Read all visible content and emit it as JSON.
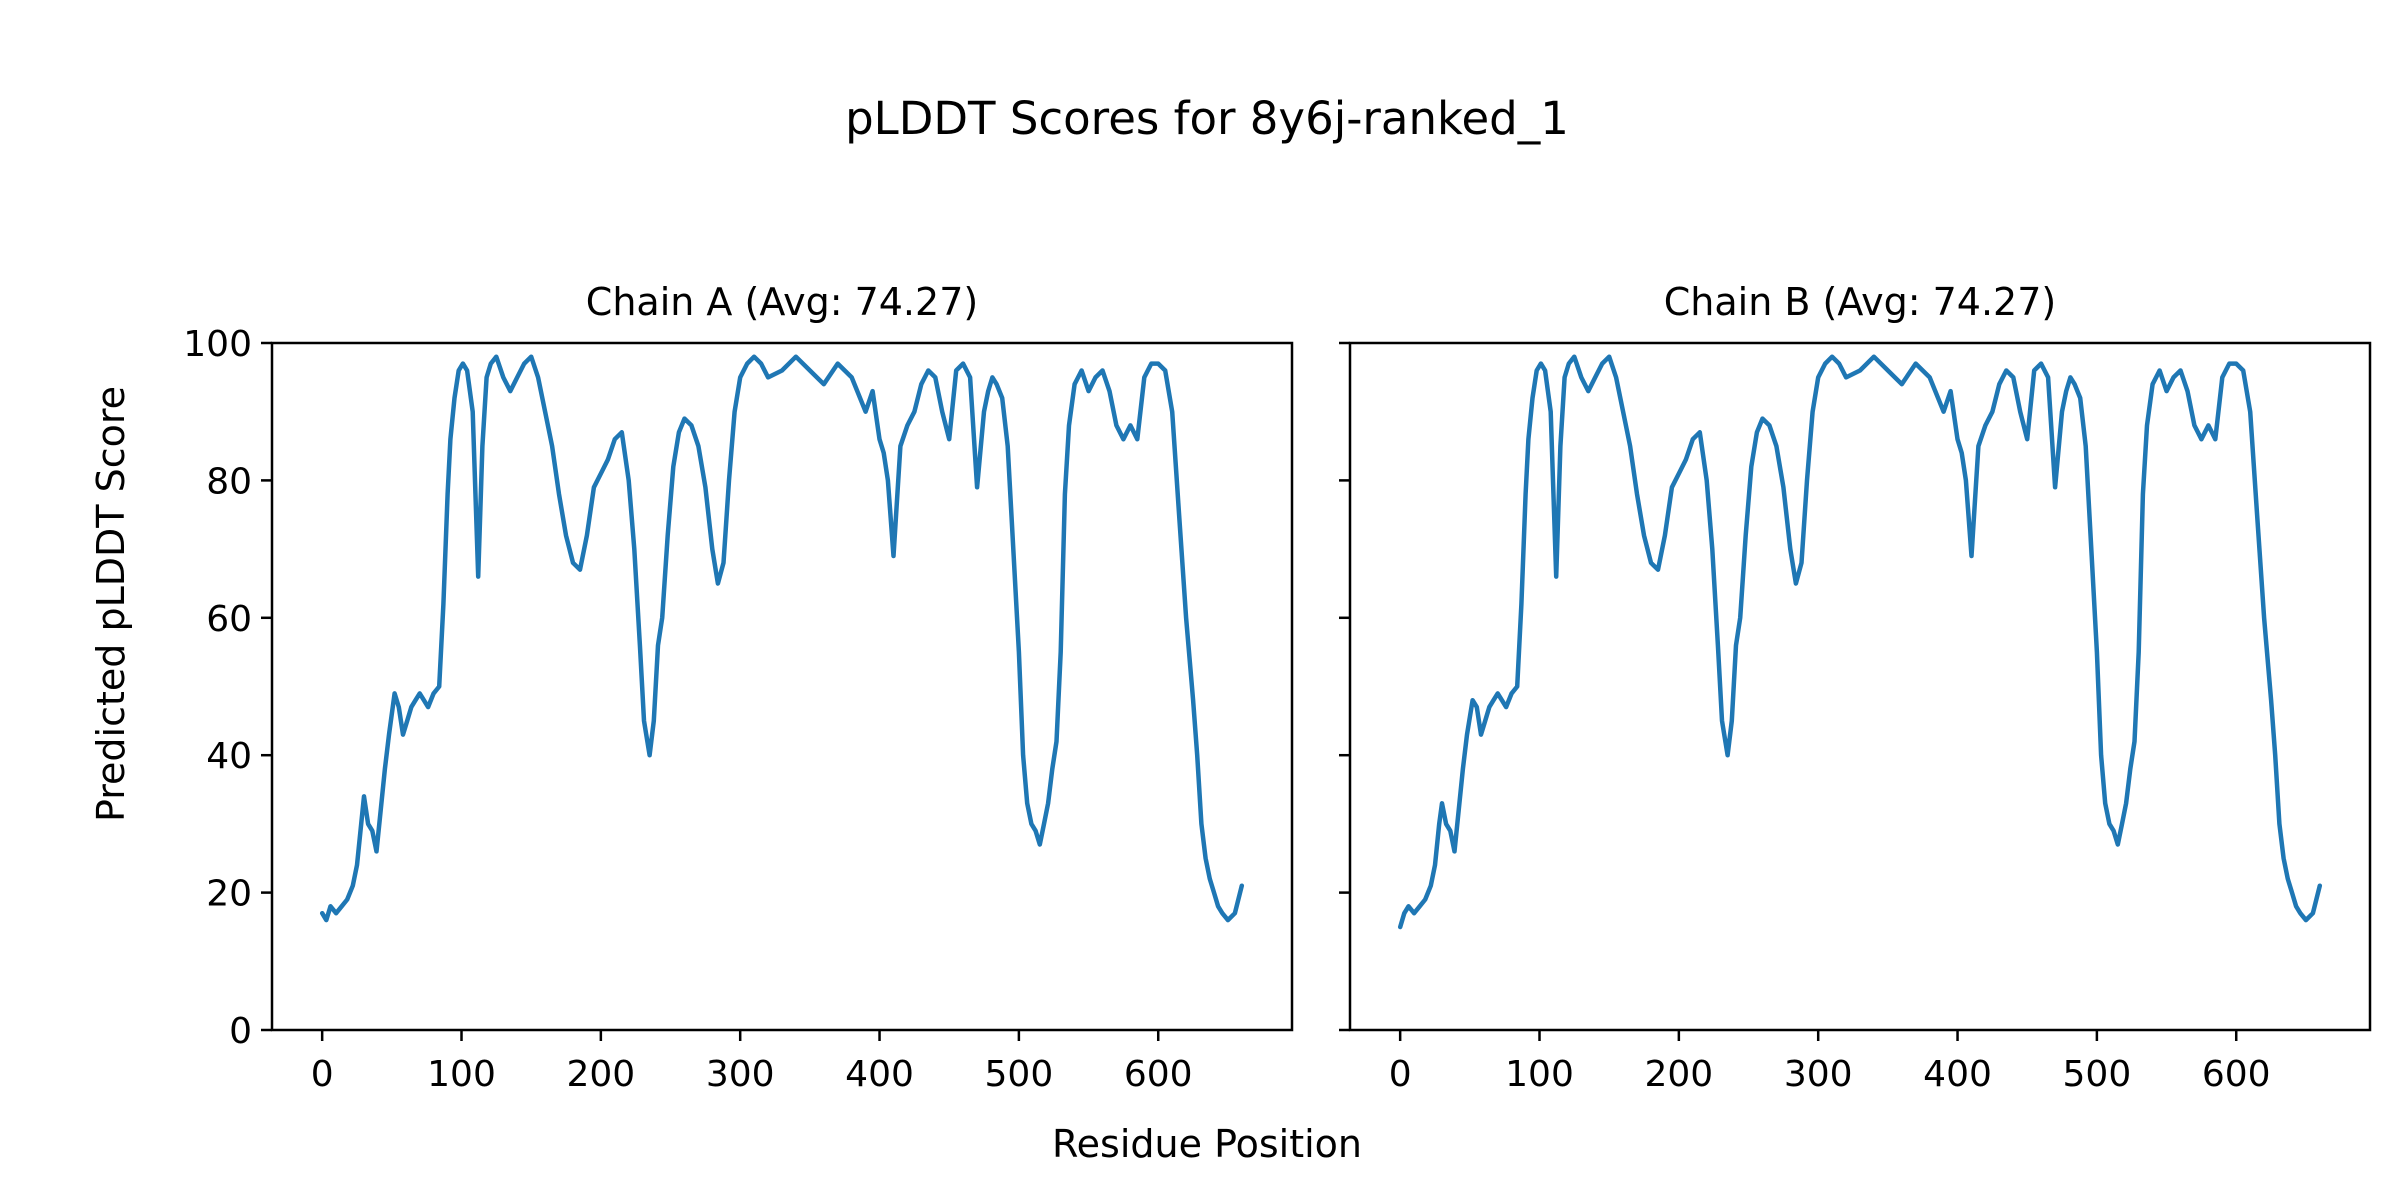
{
  "title": "pLDDT Scores for 8y6j-ranked_1",
  "xlabel": "Residue Position",
  "ylabel": "Predicted pLDDT Score",
  "line_color": "#1f77b4",
  "chart_data": [
    {
      "type": "line",
      "title": "Chain A (Avg: 74.27)",
      "xlim": [
        -36,
        696
      ],
      "ylim": [
        0,
        100
      ],
      "xticks": [
        0,
        100,
        200,
        300,
        400,
        500,
        600
      ],
      "yticks": [
        0,
        20,
        40,
        60,
        80,
        100
      ],
      "grid": false,
      "series": [
        {
          "x": [
            0,
            3,
            6,
            10,
            14,
            18,
            22,
            25,
            28,
            30,
            33,
            36,
            39,
            42,
            45,
            48,
            52,
            55,
            58,
            61,
            64,
            67,
            70,
            73,
            76,
            80,
            84,
            87,
            90,
            92,
            95,
            98,
            101,
            104,
            108,
            112,
            115,
            118,
            121,
            125,
            130,
            135,
            140,
            145,
            150,
            155,
            160,
            165,
            170,
            175,
            180,
            185,
            190,
            195,
            200,
            205,
            210,
            215,
            220,
            224,
            228,
            231,
            235,
            238,
            241,
            244,
            248,
            252,
            256,
            260,
            265,
            270,
            275,
            280,
            284,
            288,
            292,
            296,
            300,
            305,
            310,
            315,
            320,
            330,
            340,
            350,
            360,
            370,
            380,
            390,
            395,
            400,
            403,
            406,
            410,
            415,
            420,
            425,
            430,
            435,
            440,
            445,
            450,
            455,
            460,
            465,
            470,
            475,
            478,
            481,
            484,
            488,
            492,
            496,
            500,
            503,
            506,
            509,
            512,
            515,
            518,
            521,
            524,
            527,
            530,
            533,
            536,
            540,
            545,
            550,
            555,
            560,
            565,
            570,
            575,
            580,
            585,
            590,
            595,
            600,
            605,
            610,
            615,
            620,
            625,
            628,
            631,
            634,
            637,
            640,
            643,
            646,
            650,
            655,
            660
          ],
          "y": [
            17,
            16,
            18,
            17,
            18,
            19,
            21,
            24,
            30,
            34,
            30,
            29,
            26,
            32,
            38,
            43,
            49,
            47,
            43,
            45,
            47,
            48,
            49,
            48,
            47,
            49,
            50,
            62,
            78,
            86,
            92,
            96,
            97,
            96,
            90,
            66,
            85,
            95,
            97,
            98,
            95,
            93,
            95,
            97,
            98,
            95,
            90,
            85,
            78,
            72,
            68,
            67,
            72,
            79,
            81,
            83,
            86,
            87,
            80,
            70,
            56,
            45,
            40,
            45,
            56,
            60,
            72,
            82,
            87,
            89,
            88,
            85,
            79,
            70,
            65,
            68,
            80,
            90,
            95,
            97,
            98,
            97,
            95,
            96,
            98,
            96,
            94,
            97,
            95,
            90,
            93,
            86,
            84,
            80,
            69,
            85,
            88,
            90,
            94,
            96,
            95,
            90,
            86,
            96,
            97,
            95,
            79,
            90,
            93,
            95,
            94,
            92,
            85,
            70,
            55,
            40,
            33,
            30,
            29,
            27,
            30,
            33,
            38,
            42,
            55,
            78,
            88,
            94,
            96,
            93,
            95,
            96,
            93,
            88,
            86,
            88,
            86,
            95,
            97,
            97,
            96,
            90,
            75,
            60,
            48,
            40,
            30,
            25,
            22,
            20,
            18,
            17,
            16,
            17,
            21
          ]
        }
      ]
    },
    {
      "type": "line",
      "title": "Chain B (Avg: 74.27)",
      "xlim": [
        -36,
        696
      ],
      "ylim": [
        0,
        100
      ],
      "xticks": [
        0,
        100,
        200,
        300,
        400,
        500,
        600
      ],
      "yticks": [
        0,
        20,
        40,
        60,
        80,
        100
      ],
      "grid": false,
      "series": [
        {
          "x": [
            0,
            3,
            6,
            10,
            14,
            18,
            22,
            25,
            28,
            30,
            33,
            36,
            39,
            42,
            45,
            48,
            52,
            55,
            58,
            61,
            64,
            67,
            70,
            73,
            76,
            80,
            84,
            87,
            90,
            92,
            95,
            98,
            101,
            104,
            108,
            112,
            115,
            118,
            121,
            125,
            130,
            135,
            140,
            145,
            150,
            155,
            160,
            165,
            170,
            175,
            180,
            185,
            190,
            195,
            200,
            205,
            210,
            215,
            220,
            224,
            228,
            231,
            235,
            238,
            241,
            244,
            248,
            252,
            256,
            260,
            265,
            270,
            275,
            280,
            284,
            288,
            292,
            296,
            300,
            305,
            310,
            315,
            320,
            330,
            340,
            350,
            360,
            370,
            380,
            390,
            395,
            400,
            403,
            406,
            410,
            415,
            420,
            425,
            430,
            435,
            440,
            445,
            450,
            455,
            460,
            465,
            470,
            475,
            478,
            481,
            484,
            488,
            492,
            496,
            500,
            503,
            506,
            509,
            512,
            515,
            518,
            521,
            524,
            527,
            530,
            533,
            536,
            540,
            545,
            550,
            555,
            560,
            565,
            570,
            575,
            580,
            585,
            590,
            595,
            600,
            605,
            610,
            615,
            620,
            625,
            628,
            631,
            634,
            637,
            640,
            643,
            646,
            650,
            655,
            660
          ],
          "y": [
            15,
            17,
            18,
            17,
            18,
            19,
            21,
            24,
            30,
            33,
            30,
            29,
            26,
            32,
            38,
            43,
            48,
            47,
            43,
            45,
            47,
            48,
            49,
            48,
            47,
            49,
            50,
            62,
            78,
            86,
            92,
            96,
            97,
            96,
            90,
            66,
            85,
            95,
            97,
            98,
            95,
            93,
            95,
            97,
            98,
            95,
            90,
            85,
            78,
            72,
            68,
            67,
            72,
            79,
            81,
            83,
            86,
            87,
            80,
            70,
            56,
            45,
            40,
            45,
            56,
            60,
            72,
            82,
            87,
            89,
            88,
            85,
            79,
            70,
            65,
            68,
            80,
            90,
            95,
            97,
            98,
            97,
            95,
            96,
            98,
            96,
            94,
            97,
            95,
            90,
            93,
            86,
            84,
            80,
            69,
            85,
            88,
            90,
            94,
            96,
            95,
            90,
            86,
            96,
            97,
            95,
            79,
            90,
            93,
            95,
            94,
            92,
            85,
            70,
            55,
            40,
            33,
            30,
            29,
            27,
            30,
            33,
            38,
            42,
            55,
            78,
            88,
            94,
            96,
            93,
            95,
            96,
            93,
            88,
            86,
            88,
            86,
            95,
            97,
            97,
            96,
            90,
            75,
            60,
            48,
            40,
            30,
            25,
            22,
            20,
            18,
            17,
            16,
            17,
            21
          ]
        }
      ]
    }
  ]
}
